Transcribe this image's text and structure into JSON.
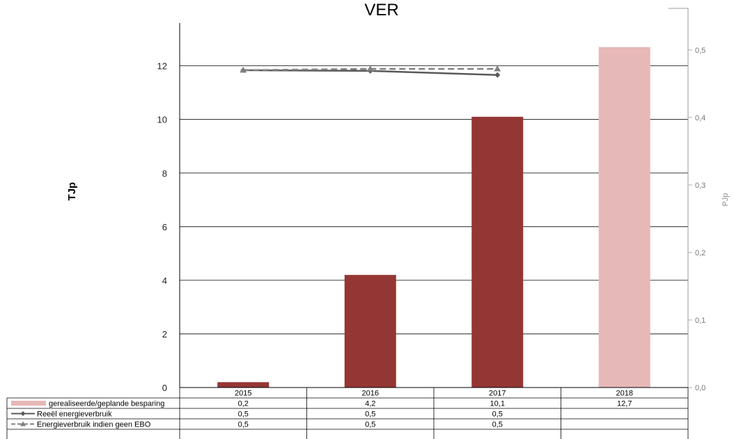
{
  "chart_data": {
    "type": "bar",
    "title": "VER",
    "categories": [
      "2015",
      "2016",
      "2017",
      "2018"
    ],
    "ylabel": "TJp",
    "y2label": "PJp",
    "ylim": [
      0,
      13.6
    ],
    "y2lim": [
      0,
      0.54
    ],
    "yticks": [
      "0",
      "2",
      "4",
      "6",
      "8",
      "10",
      "12"
    ],
    "y2ticks": [
      "0,0",
      "0,1",
      "0,2",
      "0,3",
      "0,4",
      "0,5"
    ],
    "grid": true,
    "series": [
      {
        "name": "gerealiseerde/geplande besparing",
        "kind": "bar",
        "axis": "left",
        "values": [
          0.2,
          4.2,
          10.1,
          12.7
        ],
        "labels": [
          "0,2",
          "4,2",
          "10,1",
          "12,7"
        ],
        "colors": [
          "#943634",
          "#943634",
          "#943634",
          "#e6b8b7"
        ]
      },
      {
        "name": "Reeël energieverbruik",
        "kind": "line",
        "axis": "right",
        "color": "#595959",
        "marker": "diamond",
        "values": [
          0.47,
          0.469,
          0.463,
          null
        ],
        "labels": [
          "0,5",
          "0,5",
          "0,5",
          ""
        ]
      },
      {
        "name": "Energieverbruik indien geen EBO",
        "kind": "line",
        "axis": "right",
        "color": "#808080",
        "dashed": true,
        "marker": "triangle",
        "values": [
          0.47,
          0.472,
          0.472,
          null
        ],
        "labels": [
          "0,5",
          "0,5",
          "0,5",
          ""
        ]
      }
    ]
  }
}
